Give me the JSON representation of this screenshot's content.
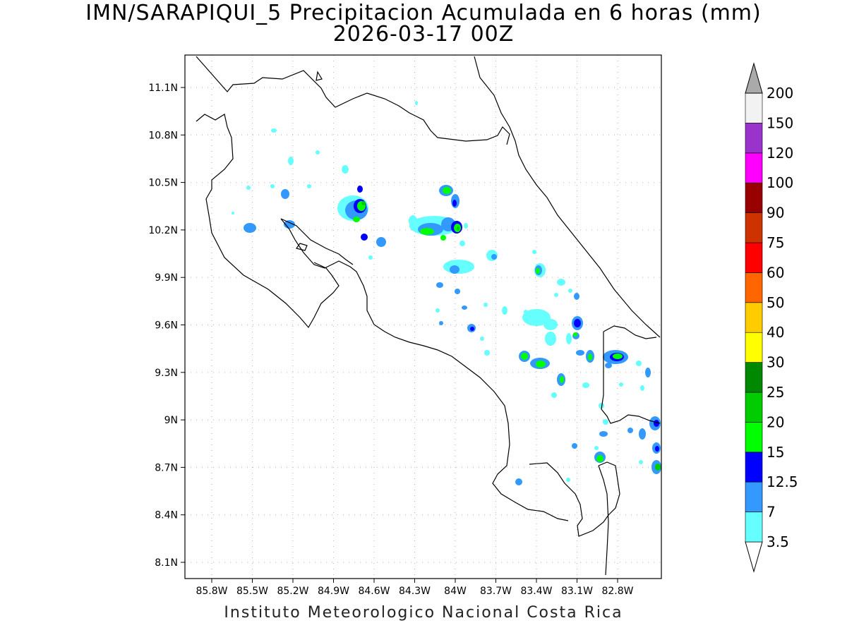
{
  "title": {
    "line1": "IMN/SARAPIQUI_5 Precipitacion Acumulada en 6 horas (mm)",
    "line2": "2026-03-17 00Z"
  },
  "footer": "Instituto Meteorologico Nacional Costa Rica",
  "map": {
    "lon_range": [
      -86.0,
      -83.0
    ],
    "lat_range": [
      8.0,
      11.3
    ],
    "x_ticks": [
      "85.8W",
      "85.5W",
      "85.2W",
      "84.9W",
      "84.6W",
      "84.3W",
      "84W",
      "83.7W",
      "83.4W",
      "83.1W",
      "82.8W"
    ],
    "y_ticks": [
      "11.1N",
      "10.8N",
      "10.5N",
      "10.2N",
      "9.9N",
      "9.6N",
      "9.3N",
      "9N",
      "8.7N",
      "8.4N",
      "8.1N"
    ],
    "grid": true
  },
  "colorbar": {
    "labels": [
      "3.5",
      "7",
      "12.5",
      "15",
      "20",
      "25",
      "30",
      "40",
      "50",
      "60",
      "75",
      "90",
      "100",
      "120",
      "150",
      "200"
    ],
    "colors": [
      "#66ffff",
      "#3399ff",
      "#0000ff",
      "#00ff00",
      "#00cc00",
      "#008800",
      "#ffff00",
      "#ffcc00",
      "#ff6600",
      "#ff0000",
      "#cc3300",
      "#990000",
      "#ff00ff",
      "#9933cc",
      "#f2f2f2",
      "#aaaaaa"
    ]
  }
}
